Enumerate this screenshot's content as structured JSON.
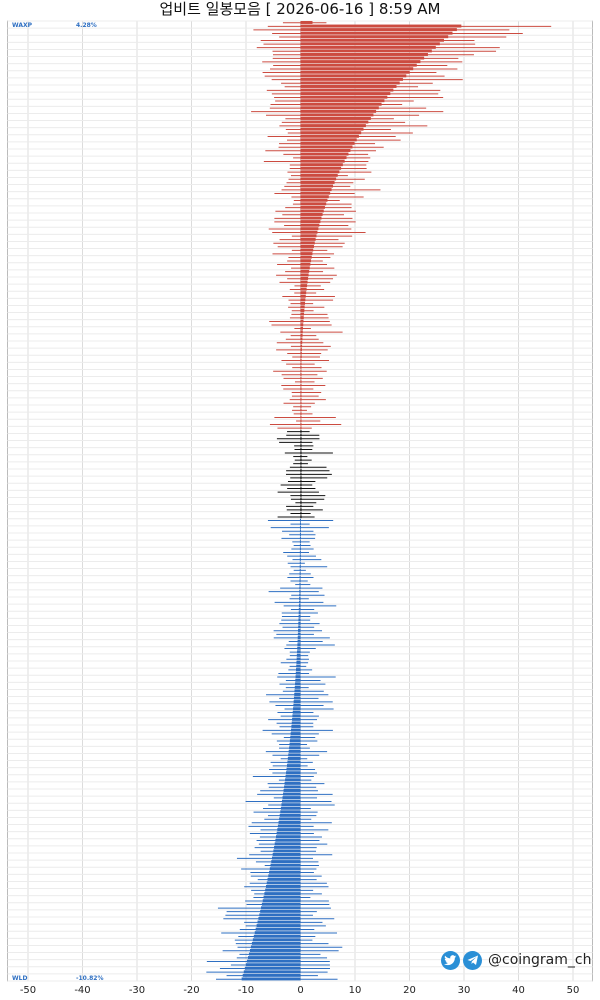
{
  "header": {
    "title": "업비트 일봉모음 [ 2026-06-16 ]  8:59 AM"
  },
  "watermark": {
    "handle": "@coingram_ch",
    "icons": [
      "twitter-icon",
      "telegram-icon"
    ]
  },
  "colors": {
    "up": "#cc4b40",
    "flat": "#111111",
    "down": "#2e6fc2",
    "grid": "#dcdcdc"
  },
  "chart_data": {
    "type": "bar",
    "orientation": "horizontal",
    "xlim": [
      -52,
      53
    ],
    "xticks": [
      -50,
      -40,
      -30,
      -20,
      -10,
      0,
      10,
      20,
      30,
      40,
      50
    ],
    "grid": true,
    "first_label": "WAXP",
    "last_label": "WLD",
    "first_value_label": "4.28%",
    "last_value_label": "-10.82%",
    "counts": {
      "up": 115,
      "flat": 25,
      "down": 130
    },
    "notes": "Each row: body bar = daily change (%), thin line = daily high-low range. Rows sorted descending by change."
  }
}
